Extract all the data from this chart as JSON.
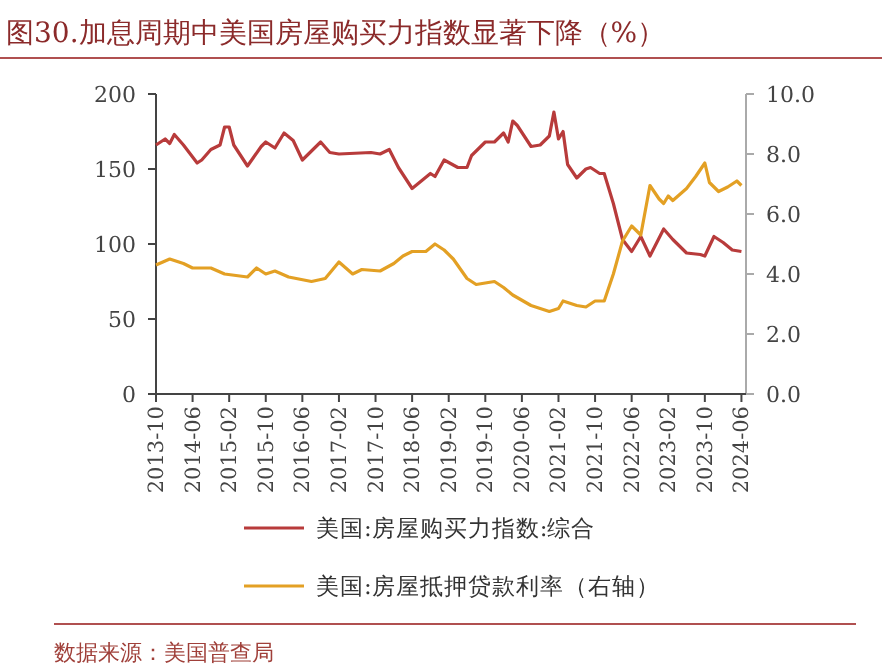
{
  "chart_data": {
    "type": "line",
    "title": "图30.加息周期中美国房屋购买力指数显著下降（%）",
    "annotations": [
      "数据来源：美国普查局"
    ],
    "xlim": [
      "2013-10",
      "2024-07"
    ],
    "xticks": [
      "2013-10",
      "2014-06",
      "2015-02",
      "2015-10",
      "2016-06",
      "2017-02",
      "2017-10",
      "2018-06",
      "2019-02",
      "2019-10",
      "2020-06",
      "2021-02",
      "2021-10",
      "2022-06",
      "2023-02",
      "2023-10",
      "2024-06"
    ],
    "ylim": [
      0,
      200
    ],
    "yticks": [
      0,
      50,
      100,
      150,
      200
    ],
    "y2lim": [
      0,
      10
    ],
    "y2ticks": [
      {
        "value": 0,
        "label": "0.0"
      },
      {
        "value": 2,
        "label": "2.0"
      },
      {
        "value": 4,
        "label": "4.0"
      },
      {
        "value": 6,
        "label": "6.0"
      },
      {
        "value": 8,
        "label": "8.0"
      },
      {
        "value": 10,
        "label": "10.0"
      }
    ],
    "legend": "bottom",
    "grid": false,
    "series": [
      {
        "name": "美国:房屋购买力指数:综合",
        "color": "#b83b3b",
        "x": [
          "2013-10",
          "2013-12",
          "2014-01",
          "2014-02",
          "2014-04",
          "2014-07",
          "2014-08",
          "2014-10",
          "2014-12",
          "2015-01",
          "2015-02",
          "2015-03",
          "2015-06",
          "2015-09",
          "2015-10",
          "2015-12",
          "2016-02",
          "2016-04",
          "2016-06",
          "2016-08",
          "2016-10",
          "2016-12",
          "2017-02",
          "2017-09",
          "2017-11",
          "2018-01",
          "2018-03",
          "2018-06",
          "2018-08",
          "2018-10",
          "2018-11",
          "2019-01",
          "2019-04",
          "2019-06",
          "2019-07",
          "2019-10",
          "2019-12",
          "2020-02",
          "2020-03",
          "2020-04",
          "2020-05",
          "2020-08",
          "2020-10",
          "2020-12",
          "2021-01",
          "2021-02",
          "2021-03",
          "2021-04",
          "2021-06",
          "2021-08",
          "2021-09",
          "2021-11",
          "2021-12",
          "2022-02",
          "2022-04",
          "2022-06",
          "2022-08",
          "2022-10",
          "2023-01",
          "2023-03",
          "2023-06",
          "2023-09",
          "2023-10",
          "2023-12",
          "2024-02",
          "2024-04",
          "2024-06"
        ],
        "values": [
          166,
          170,
          167,
          173,
          166,
          154,
          156,
          163,
          166,
          178,
          178,
          166,
          152,
          165,
          168,
          164,
          174,
          169,
          156,
          162,
          168,
          161,
          160,
          161,
          160,
          163,
          151,
          137,
          142,
          147,
          145,
          156,
          151,
          151,
          159,
          168,
          168,
          174,
          168,
          182,
          179,
          165,
          166,
          172,
          188,
          170,
          175,
          153,
          144,
          150,
          151,
          147,
          147,
          127,
          103,
          95,
          105,
          92,
          110,
          103,
          94,
          93,
          92,
          105,
          101,
          96,
          95
        ]
      },
      {
        "name": "美国:房屋抵押贷款利率（右轴）",
        "color": "#e3a024",
        "axis": "y2",
        "x": [
          "2013-10",
          "2014-01",
          "2014-04",
          "2014-06",
          "2014-10",
          "2015-01",
          "2015-06",
          "2015-08",
          "2015-10",
          "2015-12",
          "2016-03",
          "2016-08",
          "2016-11",
          "2017-02",
          "2017-05",
          "2017-07",
          "2017-11",
          "2018-02",
          "2018-04",
          "2018-06",
          "2018-09",
          "2018-11",
          "2019-01",
          "2019-03",
          "2019-06",
          "2019-08",
          "2019-12",
          "2020-02",
          "2020-04",
          "2020-08",
          "2020-12",
          "2021-02",
          "2021-03",
          "2021-06",
          "2021-08",
          "2021-10",
          "2021-12",
          "2022-02",
          "2022-04",
          "2022-06",
          "2022-08",
          "2022-10",
          "2022-12",
          "2023-01",
          "2023-02",
          "2023-03",
          "2023-06",
          "2023-08",
          "2023-10",
          "2023-11",
          "2024-01",
          "2024-03",
          "2024-05",
          "2024-06"
        ],
        "values": [
          4.3,
          4.5,
          4.35,
          4.2,
          4.2,
          4.0,
          3.9,
          4.2,
          4.0,
          4.1,
          3.9,
          3.75,
          3.85,
          4.4,
          4.0,
          4.15,
          4.1,
          4.35,
          4.6,
          4.75,
          4.75,
          5.0,
          4.8,
          4.5,
          3.85,
          3.65,
          3.75,
          3.55,
          3.3,
          2.95,
          2.75,
          2.85,
          3.1,
          2.95,
          2.9,
          3.1,
          3.1,
          4.0,
          5.1,
          5.6,
          5.3,
          6.95,
          6.5,
          6.35,
          6.6,
          6.45,
          6.85,
          7.25,
          7.7,
          7.05,
          6.75,
          6.9,
          7.1,
          6.95
        ]
      }
    ]
  }
}
